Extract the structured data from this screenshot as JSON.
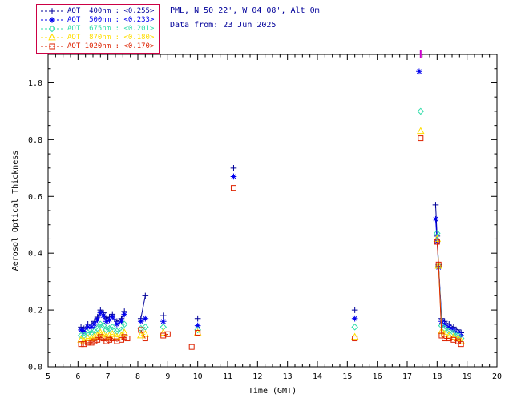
{
  "header": {
    "station": "PML, N 50 22', W 04 08', Alt 0m",
    "date_line": "Data from: 23 Jun 2025"
  },
  "legend": {
    "border_color": "#cc0044"
  },
  "chart_data": {
    "type": "scatter",
    "title": "",
    "xlabel": "Time (GMT)",
    "ylabel": "Aerosol Optical Thickness",
    "xlim": [
      5,
      20
    ],
    "ylim": [
      0,
      1.1
    ],
    "xticks": [
      5,
      6,
      7,
      8,
      9,
      10,
      11,
      12,
      13,
      14,
      15,
      16,
      17,
      18,
      19,
      20
    ],
    "yticks": [
      0.0,
      0.2,
      0.4,
      0.6,
      0.8,
      1.0
    ],
    "grid": false,
    "legend_position": "top-left",
    "clipped_point": {
      "x": 17.45,
      "color": "#cc00cc"
    },
    "series": [
      {
        "name": "AOT 400nm",
        "legend_label": "AOT  400nm : <0.255>",
        "mean": "<0.255>",
        "color": "#000099",
        "marker": "plus",
        "points": [
          [
            6.1,
            0.14
          ],
          [
            6.2,
            0.135
          ],
          [
            6.33,
            0.15
          ],
          [
            6.45,
            0.15
          ],
          [
            6.55,
            0.16
          ],
          [
            6.65,
            0.175
          ],
          [
            6.75,
            0.2
          ],
          [
            6.85,
            0.19
          ],
          [
            6.95,
            0.17
          ],
          [
            7.05,
            0.175
          ],
          [
            7.15,
            0.185
          ],
          [
            7.3,
            0.16
          ],
          [
            7.45,
            0.17
          ],
          [
            7.55,
            0.195
          ],
          [
            8.1,
            0.17
          ],
          [
            8.25,
            0.25
          ],
          [
            8.85,
            0.18
          ],
          [
            10.0,
            0.17
          ],
          [
            11.2,
            0.7
          ],
          [
            15.25,
            0.2
          ],
          [
            17.95,
            0.57
          ],
          [
            18.0,
            0.46
          ],
          [
            18.05,
            0.36
          ],
          [
            18.15,
            0.17
          ],
          [
            18.25,
            0.16
          ],
          [
            18.4,
            0.15
          ],
          [
            18.55,
            0.14
          ],
          [
            18.7,
            0.13
          ],
          [
            18.8,
            0.12
          ]
        ]
      },
      {
        "name": "AOT 500nm",
        "legend_label": "AOT  500nm : <0.233>",
        "mean": "<0.233>",
        "color": "#0000ee",
        "marker": "asterisk",
        "points": [
          [
            6.1,
            0.13
          ],
          [
            6.2,
            0.125
          ],
          [
            6.33,
            0.14
          ],
          [
            6.45,
            0.14
          ],
          [
            6.55,
            0.15
          ],
          [
            6.65,
            0.165
          ],
          [
            6.75,
            0.19
          ],
          [
            6.85,
            0.18
          ],
          [
            6.95,
            0.16
          ],
          [
            7.05,
            0.165
          ],
          [
            7.15,
            0.175
          ],
          [
            7.3,
            0.15
          ],
          [
            7.45,
            0.16
          ],
          [
            7.55,
            0.185
          ],
          [
            8.1,
            0.16
          ],
          [
            8.25,
            0.17
          ],
          [
            8.85,
            0.16
          ],
          [
            10.0,
            0.145
          ],
          [
            11.2,
            0.67
          ],
          [
            15.25,
            0.17
          ],
          [
            17.4,
            1.04
          ],
          [
            17.95,
            0.52
          ],
          [
            18.0,
            0.44
          ],
          [
            18.05,
            0.35
          ],
          [
            18.15,
            0.16
          ],
          [
            18.25,
            0.15
          ],
          [
            18.4,
            0.14
          ],
          [
            18.55,
            0.13
          ],
          [
            18.7,
            0.12
          ],
          [
            18.8,
            0.11
          ]
        ]
      },
      {
        "name": "AOT 675nm",
        "legend_label": "AOT  675nm : <0.201>",
        "mean": "<0.201>",
        "color": "#33ddaa",
        "marker": "diamond",
        "points": [
          [
            6.1,
            0.11
          ],
          [
            6.2,
            0.11
          ],
          [
            6.33,
            0.12
          ],
          [
            6.45,
            0.12
          ],
          [
            6.55,
            0.125
          ],
          [
            6.65,
            0.135
          ],
          [
            6.75,
            0.15
          ],
          [
            6.85,
            0.145
          ],
          [
            6.95,
            0.13
          ],
          [
            7.05,
            0.135
          ],
          [
            7.15,
            0.14
          ],
          [
            7.3,
            0.125
          ],
          [
            7.45,
            0.13
          ],
          [
            7.55,
            0.15
          ],
          [
            8.1,
            0.135
          ],
          [
            8.25,
            0.14
          ],
          [
            8.85,
            0.14
          ],
          [
            10.0,
            0.13
          ],
          [
            15.25,
            0.14
          ],
          [
            17.45,
            0.9
          ],
          [
            18.0,
            0.47
          ],
          [
            18.05,
            0.355
          ],
          [
            18.15,
            0.145
          ],
          [
            18.25,
            0.135
          ],
          [
            18.4,
            0.125
          ],
          [
            18.55,
            0.12
          ],
          [
            18.7,
            0.11
          ],
          [
            18.8,
            0.1
          ]
        ]
      },
      {
        "name": "AOT 870nm",
        "legend_label": "AOT  870nm : <0.180>",
        "mean": "<0.180>",
        "color": "#ffdd00",
        "marker": "triangle",
        "points": [
          [
            6.1,
            0.095
          ],
          [
            6.2,
            0.09
          ],
          [
            6.33,
            0.1
          ],
          [
            6.45,
            0.1
          ],
          [
            6.55,
            0.105
          ],
          [
            6.65,
            0.11
          ],
          [
            6.75,
            0.12
          ],
          [
            6.85,
            0.115
          ],
          [
            6.95,
            0.105
          ],
          [
            7.05,
            0.11
          ],
          [
            7.15,
            0.115
          ],
          [
            7.3,
            0.105
          ],
          [
            7.45,
            0.11
          ],
          [
            7.55,
            0.12
          ],
          [
            8.1,
            0.11
          ],
          [
            8.25,
            0.115
          ],
          [
            8.85,
            0.12
          ],
          [
            10.0,
            0.12
          ],
          [
            15.25,
            0.105
          ],
          [
            17.45,
            0.83
          ],
          [
            18.0,
            0.45
          ],
          [
            18.05,
            0.355
          ],
          [
            18.15,
            0.125
          ],
          [
            18.25,
            0.115
          ],
          [
            18.4,
            0.11
          ],
          [
            18.55,
            0.105
          ],
          [
            18.7,
            0.1
          ],
          [
            18.8,
            0.09
          ]
        ]
      },
      {
        "name": "AOT 1020nm",
        "legend_label": "AOT 1020nm : <0.170>",
        "mean": "<0.170>",
        "color": "#dd2200",
        "marker": "square",
        "points": [
          [
            6.1,
            0.08
          ],
          [
            6.2,
            0.08
          ],
          [
            6.33,
            0.085
          ],
          [
            6.45,
            0.085
          ],
          [
            6.55,
            0.09
          ],
          [
            6.65,
            0.095
          ],
          [
            6.75,
            0.105
          ],
          [
            6.85,
            0.1
          ],
          [
            6.95,
            0.09
          ],
          [
            7.05,
            0.095
          ],
          [
            7.15,
            0.1
          ],
          [
            7.3,
            0.09
          ],
          [
            7.45,
            0.095
          ],
          [
            7.55,
            0.105
          ],
          [
            7.65,
            0.1
          ],
          [
            8.1,
            0.13
          ],
          [
            8.25,
            0.1
          ],
          [
            8.85,
            0.11
          ],
          [
            9.0,
            0.115
          ],
          [
            9.8,
            0.07
          ],
          [
            10.0,
            0.12
          ],
          [
            11.2,
            0.63
          ],
          [
            15.25,
            0.1
          ],
          [
            17.45,
            0.805
          ],
          [
            18.0,
            0.44
          ],
          [
            18.05,
            0.36
          ],
          [
            18.15,
            0.11
          ],
          [
            18.25,
            0.1
          ],
          [
            18.4,
            0.1
          ],
          [
            18.55,
            0.095
          ],
          [
            18.7,
            0.09
          ],
          [
            18.8,
            0.08
          ]
        ]
      }
    ]
  }
}
